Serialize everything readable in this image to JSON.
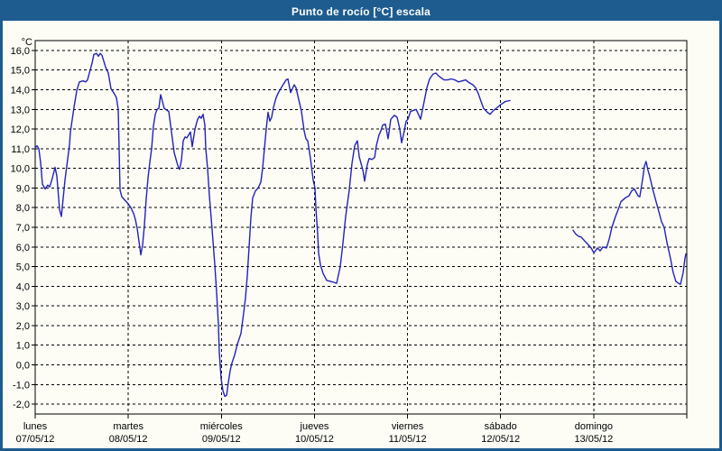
{
  "window": {
    "title": "Punto de rocío [°C] escala",
    "title_bar_color": "#1e5c8f",
    "title_text_color": "#ffffff",
    "frame_color": "#1e5c8f",
    "background_color": "#fdfdf6"
  },
  "chart_data": {
    "type": "line",
    "title": "Punto de rocío [°C] escala",
    "unit_label": "°C",
    "line_color": "#2222bb",
    "grid": "dashed",
    "legend": "none",
    "y_axis": {
      "min": -2.0,
      "max": 16.0,
      "step": 1.0,
      "tick_labels": [
        "16,0",
        "15,0",
        "14,0",
        "13,0",
        "12,0",
        "11,0",
        "10,0",
        "9,0",
        "8,0",
        "7,0",
        "6,0",
        "5,0",
        "4,0",
        "3,0",
        "2,0",
        "1,0",
        "0,0",
        "-1,0",
        "-2,0"
      ]
    },
    "x_axis": {
      "range_days": [
        0,
        7
      ],
      "days": [
        {
          "name": "lunes",
          "date": "07/05/12"
        },
        {
          "name": "martes",
          "date": "08/05/12"
        },
        {
          "name": "miércoles",
          "date": "09/05/12"
        },
        {
          "name": "jueves",
          "date": "10/05/12"
        },
        {
          "name": "viernes",
          "date": "11/05/12"
        },
        {
          "name": "sábado",
          "date": "12/05/12"
        },
        {
          "name": "domingo",
          "date": "13/05/12"
        }
      ]
    },
    "series": [
      {
        "name": "Punto de rocío [°C]",
        "segments": [
          [
            [
              0.0,
              11.05
            ],
            [
              0.019,
              11.15
            ],
            [
              0.039,
              11.0
            ],
            [
              0.058,
              10.3
            ],
            [
              0.078,
              9.2
            ],
            [
              0.107,
              8.95
            ],
            [
              0.136,
              9.15
            ],
            [
              0.155,
              9.05
            ],
            [
              0.184,
              9.5
            ],
            [
              0.213,
              10.05
            ],
            [
              0.233,
              9.6
            ],
            [
              0.262,
              7.9
            ],
            [
              0.281,
              7.55
            ],
            [
              0.32,
              9.4
            ],
            [
              0.368,
              11.2
            ],
            [
              0.378,
              11.85
            ],
            [
              0.417,
              13.1
            ],
            [
              0.446,
              13.95
            ],
            [
              0.475,
              14.4
            ],
            [
              0.514,
              14.45
            ],
            [
              0.543,
              14.4
            ],
            [
              0.562,
              14.5
            ],
            [
              0.582,
              14.85
            ],
            [
              0.611,
              15.35
            ],
            [
              0.63,
              15.8
            ],
            [
              0.659,
              15.85
            ],
            [
              0.679,
              15.7
            ],
            [
              0.698,
              15.85
            ],
            [
              0.717,
              15.75
            ],
            [
              0.756,
              15.15
            ],
            [
              0.785,
              14.85
            ],
            [
              0.814,
              14.05
            ],
            [
              0.843,
              13.85
            ],
            [
              0.873,
              13.6
            ],
            [
              0.892,
              13.0
            ],
            [
              0.902,
              11.0
            ],
            [
              0.911,
              8.9
            ],
            [
              0.931,
              8.55
            ],
            [
              0.97,
              8.35
            ],
            [
              0.999,
              8.2
            ],
            [
              1.028,
              8.0
            ],
            [
              1.057,
              7.7
            ],
            [
              1.076,
              7.4
            ],
            [
              1.096,
              6.95
            ],
            [
              1.125,
              5.95
            ],
            [
              1.134,
              5.6
            ],
            [
              1.154,
              6.1
            ],
            [
              1.173,
              7.1
            ],
            [
              1.193,
              8.45
            ],
            [
              1.212,
              9.5
            ],
            [
              1.231,
              10.3
            ],
            [
              1.251,
              11.0
            ],
            [
              1.27,
              12.15
            ],
            [
              1.29,
              12.75
            ],
            [
              1.309,
              13.0
            ],
            [
              1.328,
              13.05
            ],
            [
              1.348,
              13.75
            ],
            [
              1.367,
              13.4
            ],
            [
              1.386,
              13.05
            ],
            [
              1.416,
              12.95
            ],
            [
              1.435,
              12.9
            ],
            [
              1.464,
              11.85
            ],
            [
              1.493,
              10.8
            ],
            [
              1.522,
              10.3
            ],
            [
              1.542,
              10.0
            ],
            [
              1.551,
              9.95
            ],
            [
              1.571,
              10.4
            ],
            [
              1.59,
              11.4
            ],
            [
              1.61,
              11.6
            ],
            [
              1.629,
              11.55
            ],
            [
              1.648,
              11.7
            ],
            [
              1.668,
              11.85
            ],
            [
              1.687,
              11.1
            ],
            [
              1.716,
              12.0
            ],
            [
              1.745,
              12.5
            ],
            [
              1.765,
              12.65
            ],
            [
              1.784,
              12.55
            ],
            [
              1.803,
              12.75
            ],
            [
              1.823,
              12.2
            ],
            [
              1.832,
              11.0
            ],
            [
              1.852,
              10.0
            ],
            [
              1.871,
              8.6
            ],
            [
              1.9,
              6.9
            ],
            [
              1.929,
              5.1
            ],
            [
              1.949,
              3.7
            ],
            [
              1.968,
              2.05
            ],
            [
              1.978,
              0.65
            ],
            [
              1.997,
              -0.7
            ],
            [
              2.017,
              -1.3
            ],
            [
              2.036,
              -1.6
            ],
            [
              2.056,
              -1.55
            ],
            [
              2.075,
              -0.9
            ],
            [
              2.094,
              -0.3
            ],
            [
              2.114,
              0.1
            ],
            [
              2.143,
              0.5
            ],
            [
              2.172,
              1.05
            ],
            [
              2.211,
              1.6
            ],
            [
              2.24,
              2.65
            ],
            [
              2.259,
              3.4
            ],
            [
              2.279,
              4.6
            ],
            [
              2.298,
              6.0
            ],
            [
              2.317,
              7.5
            ],
            [
              2.337,
              8.5
            ],
            [
              2.366,
              8.85
            ],
            [
              2.395,
              9.0
            ],
            [
              2.424,
              9.3
            ],
            [
              2.443,
              10.0
            ],
            [
              2.463,
              11.0
            ],
            [
              2.482,
              12.0
            ],
            [
              2.501,
              12.85
            ],
            [
              2.521,
              12.4
            ],
            [
              2.54,
              12.6
            ],
            [
              2.56,
              13.1
            ],
            [
              2.589,
              13.6
            ],
            [
              2.618,
              13.9
            ],
            [
              2.656,
              14.2
            ],
            [
              2.695,
              14.5
            ],
            [
              2.715,
              14.55
            ],
            [
              2.744,
              13.85
            ],
            [
              2.783,
              14.25
            ],
            [
              2.802,
              14.1
            ],
            [
              2.831,
              13.5
            ],
            [
              2.86,
              12.9
            ],
            [
              2.889,
              11.9
            ],
            [
              2.909,
              11.5
            ],
            [
              2.928,
              11.4
            ],
            [
              2.957,
              10.5
            ],
            [
              2.986,
              9.4
            ],
            [
              3.006,
              9.0
            ],
            [
              3.015,
              8.0
            ],
            [
              3.035,
              6.65
            ],
            [
              3.044,
              5.7
            ],
            [
              3.064,
              5.1
            ],
            [
              3.093,
              4.65
            ],
            [
              3.132,
              4.3
            ],
            [
              3.171,
              4.25
            ],
            [
              3.209,
              4.2
            ],
            [
              3.238,
              4.15
            ],
            [
              3.277,
              5.0
            ],
            [
              3.306,
              6.2
            ],
            [
              3.335,
              7.55
            ],
            [
              3.374,
              8.9
            ],
            [
              3.403,
              10.25
            ],
            [
              3.432,
              11.15
            ],
            [
              3.461,
              11.4
            ],
            [
              3.481,
              10.6
            ],
            [
              3.52,
              9.9
            ],
            [
              3.539,
              9.35
            ],
            [
              3.568,
              10.2
            ],
            [
              3.587,
              10.5
            ],
            [
              3.617,
              10.45
            ],
            [
              3.646,
              10.55
            ],
            [
              3.665,
              11.15
            ],
            [
              3.694,
              11.7
            ],
            [
              3.713,
              11.9
            ],
            [
              3.733,
              12.2
            ],
            [
              3.762,
              12.25
            ],
            [
              3.791,
              11.5
            ],
            [
              3.82,
              12.5
            ],
            [
              3.839,
              12.6
            ],
            [
              3.859,
              12.7
            ],
            [
              3.888,
              12.6
            ],
            [
              3.917,
              12.0
            ],
            [
              3.936,
              11.3
            ],
            [
              3.965,
              11.9
            ],
            [
              3.985,
              12.4
            ],
            [
              4.004,
              12.5
            ],
            [
              4.033,
              12.9
            ],
            [
              4.062,
              12.95
            ],
            [
              4.092,
              13.0
            ],
            [
              4.121,
              12.7
            ],
            [
              4.14,
              12.5
            ],
            [
              4.179,
              13.4
            ],
            [
              4.208,
              14.1
            ],
            [
              4.237,
              14.55
            ],
            [
              4.276,
              14.8
            ],
            [
              4.305,
              14.85
            ],
            [
              4.334,
              14.7
            ],
            [
              4.363,
              14.6
            ],
            [
              4.392,
              14.5
            ],
            [
              4.431,
              14.5
            ],
            [
              4.469,
              14.55
            ],
            [
              4.508,
              14.5
            ],
            [
              4.547,
              14.4
            ],
            [
              4.586,
              14.45
            ],
            [
              4.625,
              14.5
            ],
            [
              4.663,
              14.35
            ],
            [
              4.702,
              14.25
            ],
            [
              4.731,
              14.1
            ],
            [
              4.76,
              13.8
            ],
            [
              4.789,
              13.4
            ],
            [
              4.818,
              13.05
            ],
            [
              4.857,
              12.85
            ],
            [
              4.886,
              12.75
            ],
            [
              4.915,
              12.9
            ],
            [
              4.964,
              13.1
            ],
            [
              5.003,
              13.25
            ],
            [
              5.051,
              13.4
            ],
            [
              5.1,
              13.45
            ]
          ],
          [
            [
              5.778,
              6.85
            ],
            [
              5.807,
              6.65
            ],
            [
              5.836,
              6.55
            ],
            [
              5.866,
              6.5
            ],
            [
              5.895,
              6.35
            ],
            [
              5.943,
              6.1
            ],
            [
              5.972,
              5.95
            ],
            [
              6.001,
              5.7
            ],
            [
              6.04,
              5.95
            ],
            [
              6.069,
              5.8
            ],
            [
              6.098,
              6.0
            ],
            [
              6.137,
              5.95
            ],
            [
              6.166,
              6.4
            ],
            [
              6.195,
              7.0
            ],
            [
              6.234,
              7.55
            ],
            [
              6.263,
              7.9
            ],
            [
              6.292,
              8.3
            ],
            [
              6.34,
              8.5
            ],
            [
              6.379,
              8.6
            ],
            [
              6.408,
              8.85
            ],
            [
              6.437,
              8.95
            ],
            [
              6.476,
              8.6
            ],
            [
              6.495,
              8.55
            ],
            [
              6.524,
              9.4
            ],
            [
              6.544,
              10.1
            ],
            [
              6.563,
              10.35
            ],
            [
              6.583,
              9.9
            ],
            [
              6.602,
              9.6
            ],
            [
              6.631,
              9.0
            ],
            [
              6.67,
              8.3
            ],
            [
              6.699,
              7.8
            ],
            [
              6.728,
              7.3
            ],
            [
              6.757,
              7.0
            ],
            [
              6.786,
              6.25
            ],
            [
              6.825,
              5.4
            ],
            [
              6.854,
              4.7
            ],
            [
              6.883,
              4.25
            ],
            [
              6.912,
              4.15
            ],
            [
              6.932,
              4.1
            ],
            [
              6.961,
              4.7
            ],
            [
              6.98,
              5.4
            ],
            [
              6.99,
              5.65
            ]
          ]
        ]
      }
    ]
  }
}
